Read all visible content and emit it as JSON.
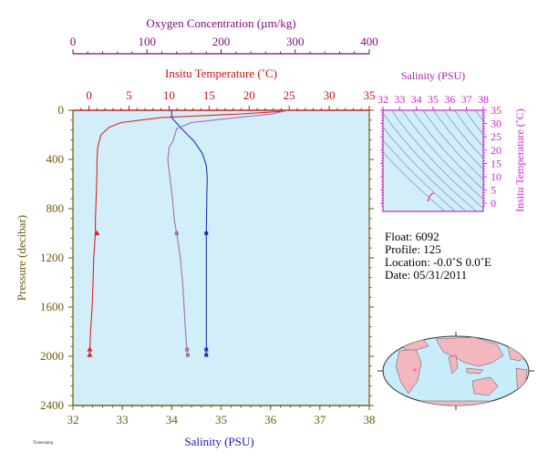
{
  "chart_data": [
    {
      "type": "line",
      "ylabel": "Pressure (decibar)",
      "ylim": [
        2400,
        0
      ],
      "yticks": [
        0,
        400,
        800,
        1200,
        1600,
        2000,
        2400
      ],
      "axes": {
        "oxygen": {
          "label": "Oxygen Concentration (µm/kg)",
          "range": [
            0,
            400
          ],
          "ticks": [
            0,
            100,
            200,
            300,
            400
          ],
          "color": "#7b0a7b"
        },
        "temperature": {
          "label": "Insitu Temperature (˚C)",
          "range": [
            -2,
            35
          ],
          "ticks": [
            0,
            5,
            10,
            15,
            20,
            25,
            30,
            35
          ],
          "color": "#cc1111"
        },
        "salinity": {
          "label": "Salinity (PSU)",
          "range": [
            32,
            38
          ],
          "ticks": [
            32,
            33,
            34,
            35,
            36,
            37,
            38
          ],
          "color": "#1a1aaa"
        }
      },
      "series": [
        {
          "axis": "temperature",
          "color": "#dd2222",
          "points": [
            [
              25,
              0
            ],
            [
              24,
              10
            ],
            [
              19,
              30
            ],
            [
              9,
              60
            ],
            [
              4,
              100
            ],
            [
              2.5,
              140
            ],
            [
              1.5,
              200
            ],
            [
              1.1,
              300
            ],
            [
              1.0,
              400
            ],
            [
              1.0,
              500
            ],
            [
              0.9,
              700
            ],
            [
              0.8,
              900
            ],
            [
              0.8,
              1000
            ],
            [
              0.6,
              1200
            ],
            [
              0.5,
              1400
            ],
            [
              0.4,
              1600
            ],
            [
              0.2,
              1800
            ],
            [
              0.1,
              1960
            ],
            [
              0.1,
              1990
            ]
          ],
          "markers": {
            "shape": "triangle",
            "points": [
              [
                1.0,
                1000
              ],
              [
                0.1,
                1945
              ],
              [
                0.1,
                1990
              ]
            ]
          }
        },
        {
          "axis": "salinity",
          "color": "#2233bb",
          "points": [
            [
              34.0,
              0
            ],
            [
              34.0,
              60
            ],
            [
              34.2,
              150
            ],
            [
              34.45,
              250
            ],
            [
              34.62,
              350
            ],
            [
              34.7,
              450
            ],
            [
              34.72,
              550
            ],
            [
              34.71,
              700
            ],
            [
              34.7,
              1000
            ],
            [
              34.7,
              1300
            ],
            [
              34.7,
              1600
            ],
            [
              34.7,
              1960
            ],
            [
              34.7,
              1990
            ]
          ],
          "markers": {
            "shape": "square",
            "points": [
              [
                34.7,
                1000
              ],
              [
                34.7,
                1945
              ],
              [
                34.7,
                1990
              ]
            ]
          }
        },
        {
          "axis": "oxygen",
          "color": "#a070b0",
          "points": [
            [
              290,
              0
            ],
            [
              270,
              30
            ],
            [
              220,
              60
            ],
            [
              160,
              100
            ],
            [
              140,
              150
            ],
            [
              135,
              250
            ],
            [
              130,
              300
            ],
            [
              128,
              400
            ],
            [
              130,
              500
            ],
            [
              134,
              700
            ],
            [
              137,
              900
            ],
            [
              140,
              1000
            ],
            [
              145,
              1200
            ],
            [
              148,
              1400
            ],
            [
              150,
              1600
            ],
            [
              152,
              1800
            ],
            [
              154,
              1960
            ],
            [
              155,
              1990
            ]
          ],
          "markers": {
            "shape": "square",
            "points": [
              [
                140,
                1000
              ],
              [
                154,
                1945
              ],
              [
                155,
                1990
              ]
            ]
          }
        }
      ]
    },
    {
      "type": "scatter",
      "title": "Salinity (PSU)",
      "xlabel": "Salinity (PSU)",
      "ylabel": "Insitu Temperature (˚C)",
      "xlim": [
        32,
        38
      ],
      "ylim": [
        -3,
        35
      ],
      "xticks": [
        32,
        33,
        34,
        35,
        36,
        37,
        38
      ],
      "yticks": [
        0,
        5,
        10,
        15,
        20,
        25,
        30,
        35
      ],
      "points": [
        [
          34.7,
          1.0
        ],
        [
          34.72,
          1.3
        ],
        [
          34.75,
          2.0
        ],
        [
          34.8,
          2.8
        ],
        [
          34.9,
          3.5
        ],
        [
          35.0,
          3.8
        ]
      ]
    }
  ],
  "info": {
    "float": "Float:  6092",
    "profile": "Profile:  125",
    "location": "Location:  -0.0˚S   0.0˚E",
    "date": "Date:  05/31/2011"
  },
  "footer": "Timestamp"
}
